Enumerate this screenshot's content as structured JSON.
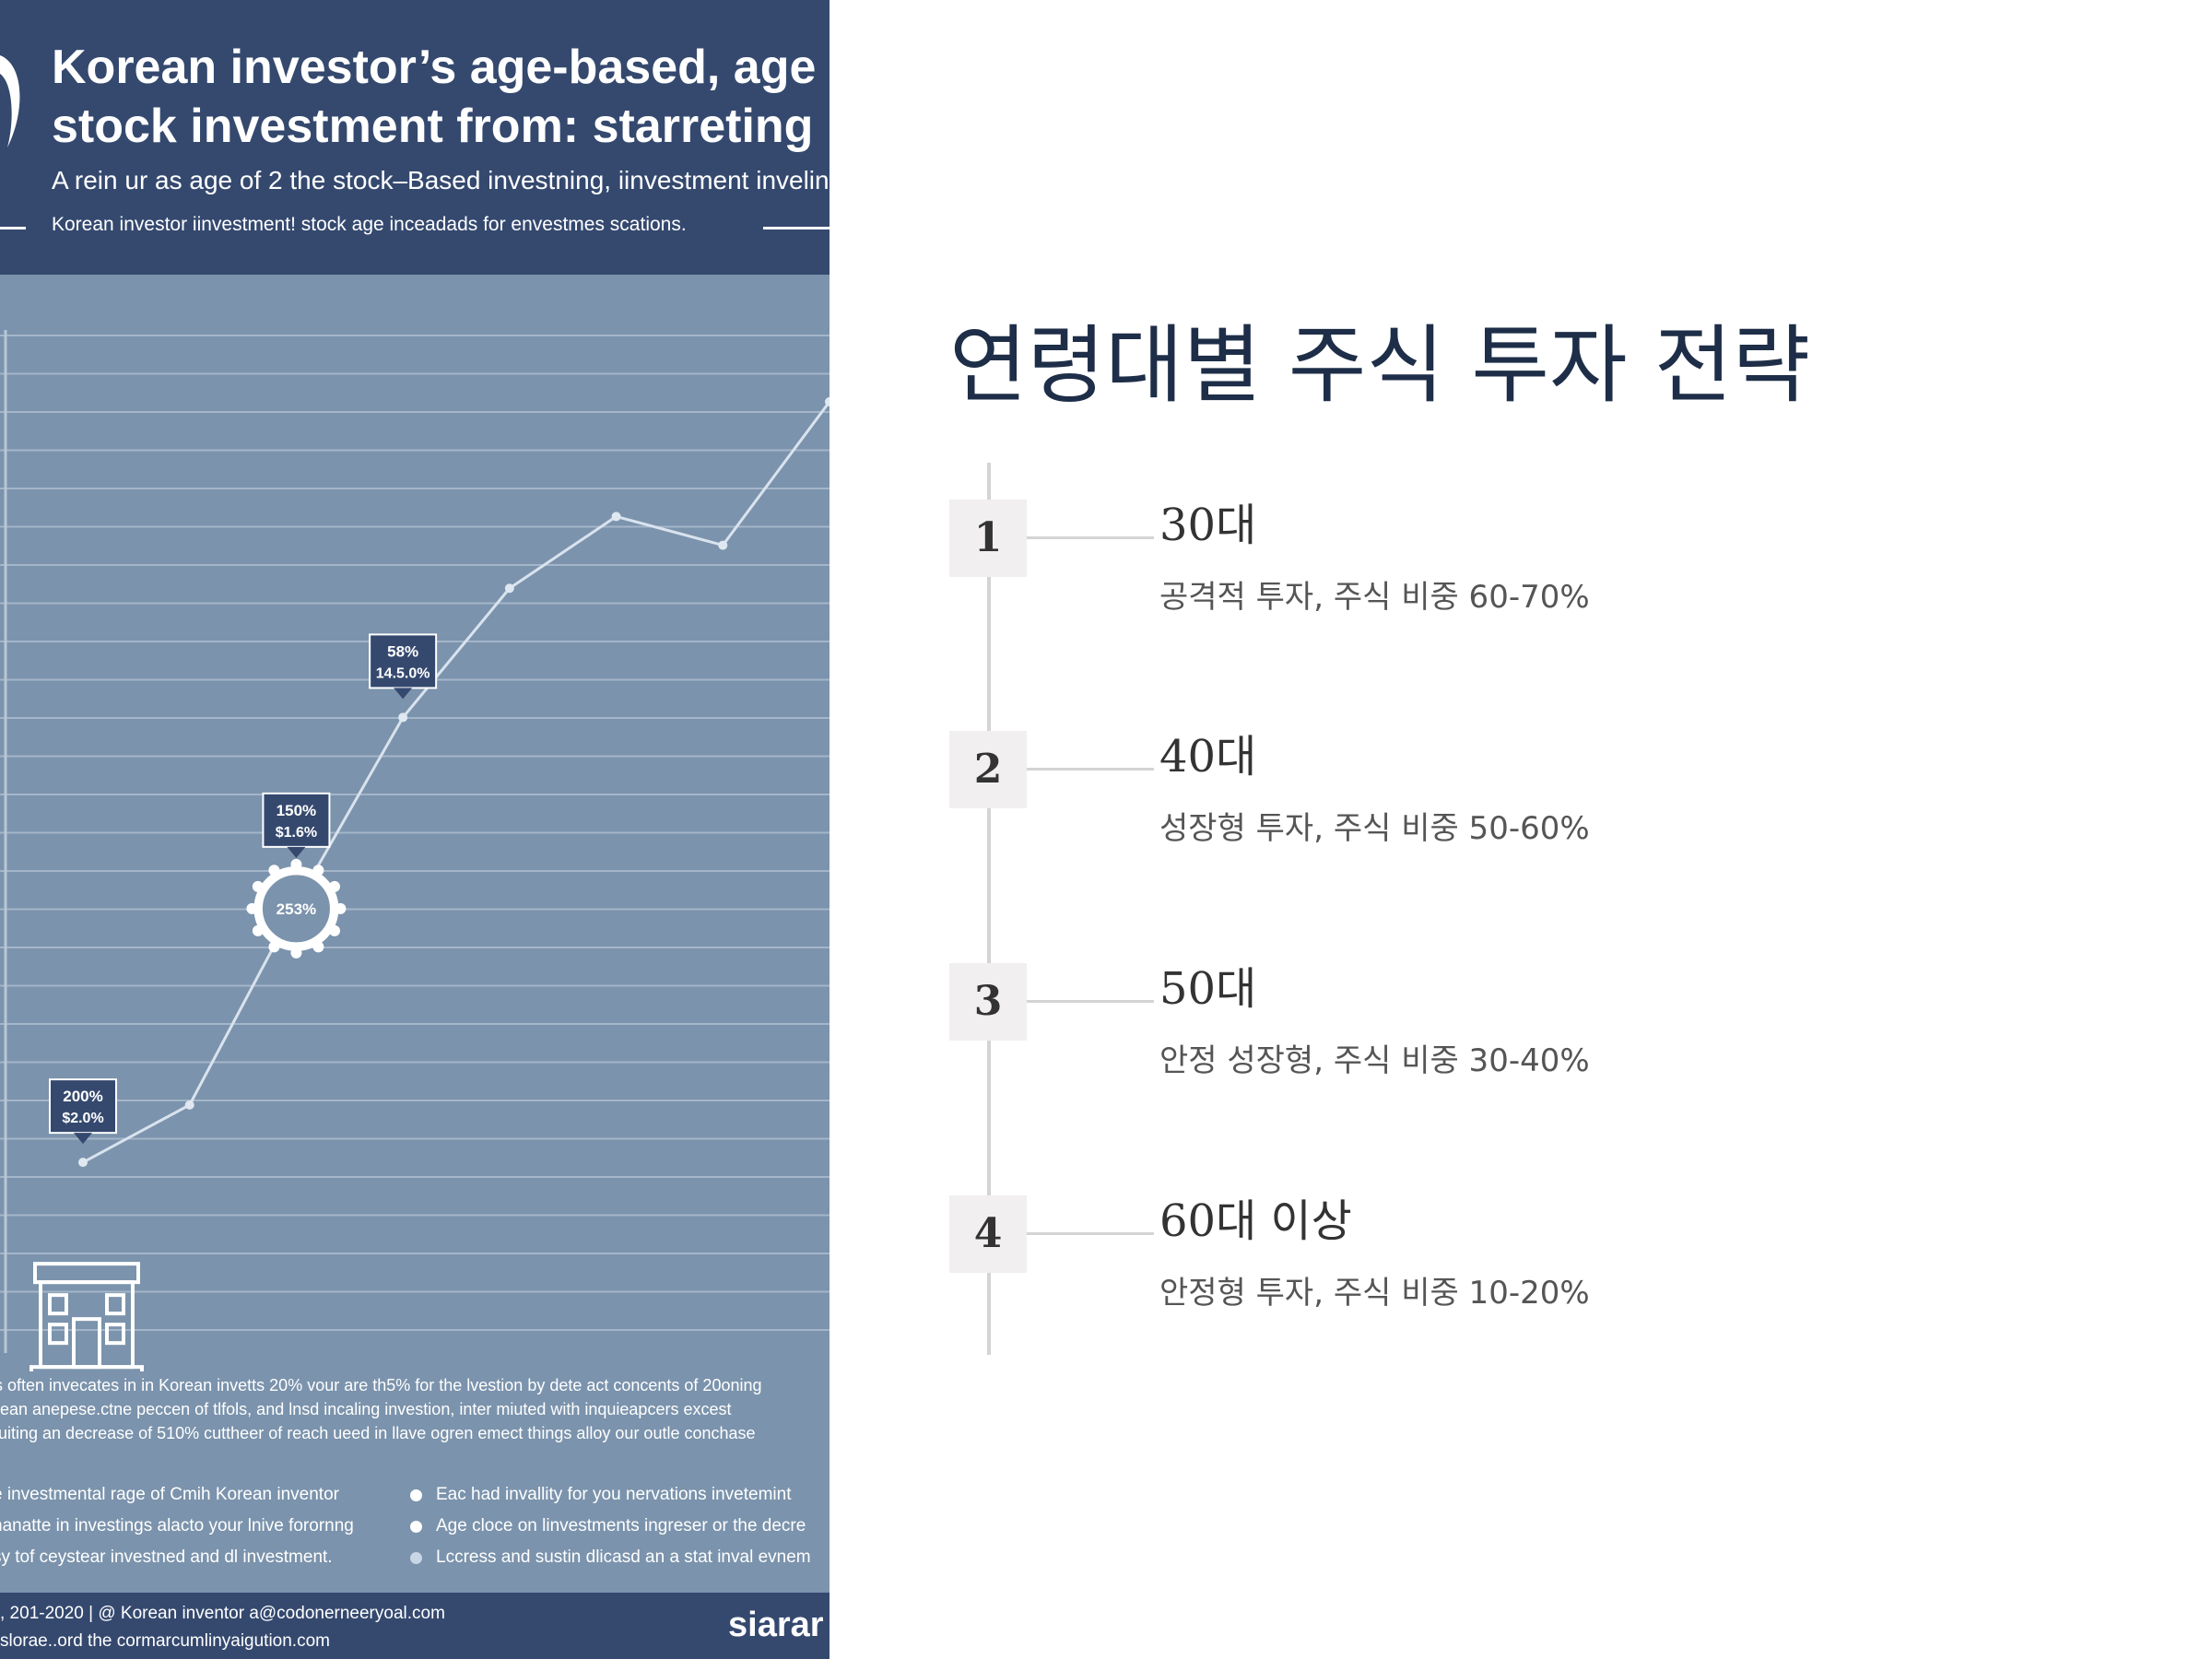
{
  "infographic": {
    "title_line1": "Korean investor’s age-based, age",
    "title_line2": "stock investment from: starreting",
    "subtitle": "A rein ur as age of 2 the stock–Based investning, iinvestment invelin",
    "tagline": "Korean investor iinvestment! stock age inceadads for envestmes scations.",
    "paragraph_lines": [
      "s often invecates in in Korean invetts 20% vour are th5% for the lvestion by dete act concents of 20oning",
      "rean anepese.ctne peccen of tlfols, and lnsd incaling investion, inter miuted with inquieapcers excest",
      "luiting an decrease of 510% cuttheer of reach ueed in llave ogren emect things alloy our outle conchase"
    ],
    "bullets_left": [
      "e investmental rage of Cmih Korean inventor",
      "nanatte in investings alacto your lnive forornng",
      "sy tof ceystear investned and dl investment."
    ],
    "bullets_right": [
      "Eac had invallity for you nervations invetemint",
      "Age cloce on linvestments ingreser or the decre",
      "Lccress and sustin dlicasd an a stat inval evnem"
    ],
    "footer_line1": ", 201-2020 | @ Korean inventor a@codonerneeryoal.com",
    "footer_line2": "slorae..ord the cormarcumlinyaigution.com",
    "brand": "siarar"
  },
  "chart_data": {
    "type": "line",
    "title": "",
    "xlabel": "",
    "ylabel": "",
    "line_color": "#d9e3ee",
    "background": "#7b93ac",
    "grid": true,
    "series": [
      {
        "values": [
          12,
          16,
          30,
          43,
          52,
          57,
          55,
          65
        ]
      }
    ],
    "ylim": [
      0,
      70
    ],
    "markers": [
      {
        "point_index": 0,
        "label_top": "200%",
        "label_bottom": "$2.0%",
        "icon": "bank-building-icon"
      },
      {
        "point_index": 2,
        "label_top": "150%",
        "label_bottom": "$1.6%",
        "badge": "253%"
      },
      {
        "point_index": 3,
        "label_top": "58%",
        "label_bottom": "14.5.0%"
      }
    ]
  },
  "slide": {
    "title": "연령대별 주식 투자 전략",
    "accent_color": "#1e2e48",
    "items": [
      {
        "number": "1",
        "heading": "30대",
        "description": "공격적 투자, 주식 비중 60-70%"
      },
      {
        "number": "2",
        "heading": "40대",
        "description": "성장형 투자, 주식 비중 50-60%"
      },
      {
        "number": "3",
        "heading": "50대",
        "description": "안정 성장형, 주식 비중 30-40%"
      },
      {
        "number": "4",
        "heading": "60대 이상",
        "description": "안정형 투자, 주식 비중 10-20%"
      }
    ]
  }
}
